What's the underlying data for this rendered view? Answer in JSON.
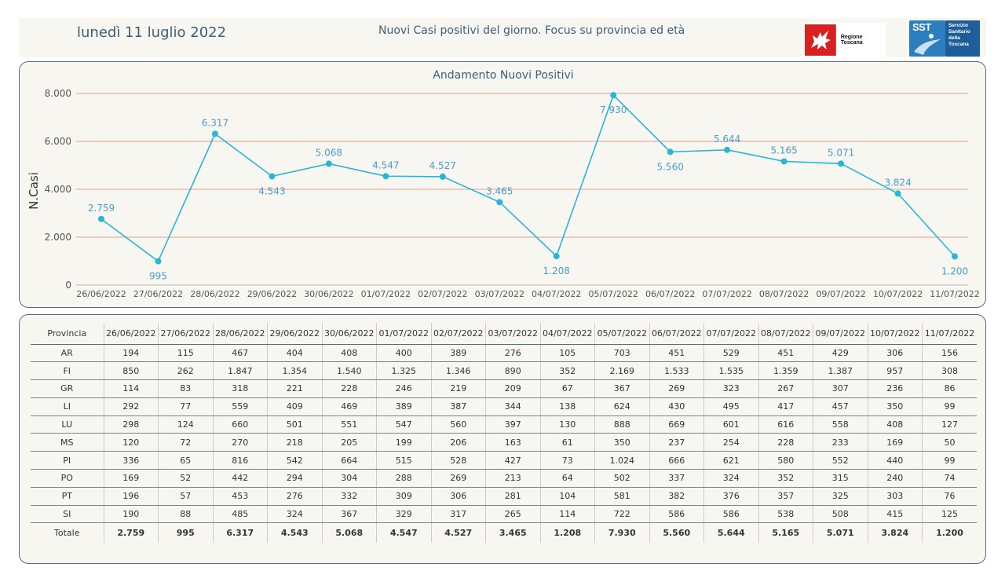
{
  "header": {
    "date": "lunedì 11 luglio 2022",
    "title": "Nuovi Casi positivi del giorno. Focus su provincia ed età",
    "logo_region": "Regione Toscana",
    "logo_sst": "SST",
    "logo_sst_side": [
      "Servizio",
      "Sanitario",
      "della",
      "Toscana"
    ]
  },
  "chart_data": {
    "type": "line",
    "title": "Andamento Nuovi Positivi",
    "ylabel": "N.Casi",
    "xlabel": "",
    "ylim": [
      0,
      8000
    ],
    "yticks": [
      "0",
      "2.000",
      "4.000",
      "6.000",
      "8.000"
    ],
    "ytick_values": [
      0,
      2000,
      4000,
      6000,
      8000
    ],
    "grid": true,
    "categories": [
      "26/06/2022",
      "27/06/2022",
      "28/06/2022",
      "29/06/2022",
      "30/06/2022",
      "01/07/2022",
      "02/07/2022",
      "03/07/2022",
      "04/07/2022",
      "05/07/2022",
      "06/07/2022",
      "07/07/2022",
      "08/07/2022",
      "09/07/2022",
      "10/07/2022",
      "11/07/2022"
    ],
    "values": [
      2759,
      995,
      6317,
      4543,
      5068,
      4547,
      4527,
      3465,
      1208,
      7930,
      5560,
      5644,
      5165,
      5071,
      3824,
      1200
    ],
    "labels": [
      "2.759",
      "995",
      "6.317",
      "4.543",
      "5.068",
      "4.547",
      "4.527",
      "3.465",
      "1.208",
      "7.930",
      "5.560",
      "5.644",
      "5.165",
      "5.071",
      "3.824",
      "1.200"
    ],
    "label_pos": [
      "above",
      "below",
      "above",
      "below",
      "above",
      "above",
      "above",
      "above",
      "below",
      "below",
      "below",
      "above",
      "above",
      "above",
      "above",
      "below"
    ],
    "colors": {
      "line": "#29b6d6",
      "label": "#4a9cc9",
      "grid": "#d9a38f",
      "axis_text": "#555555"
    }
  },
  "table": {
    "header_label": "Provincia",
    "total_label": "Totale",
    "rows": [
      {
        "prov": "AR",
        "vals": [
          "194",
          "115",
          "467",
          "404",
          "408",
          "400",
          "389",
          "276",
          "105",
          "703",
          "451",
          "529",
          "451",
          "429",
          "306",
          "156"
        ]
      },
      {
        "prov": "FI",
        "vals": [
          "850",
          "262",
          "1.847",
          "1.354",
          "1.540",
          "1.325",
          "1.346",
          "890",
          "352",
          "2.169",
          "1.533",
          "1.535",
          "1.359",
          "1.387",
          "957",
          "308"
        ]
      },
      {
        "prov": "GR",
        "vals": [
          "114",
          "83",
          "318",
          "221",
          "228",
          "246",
          "219",
          "209",
          "67",
          "367",
          "269",
          "323",
          "267",
          "307",
          "236",
          "86"
        ]
      },
      {
        "prov": "LI",
        "vals": [
          "292",
          "77",
          "559",
          "409",
          "469",
          "389",
          "387",
          "344",
          "138",
          "624",
          "430",
          "495",
          "417",
          "457",
          "350",
          "99"
        ]
      },
      {
        "prov": "LU",
        "vals": [
          "298",
          "124",
          "660",
          "501",
          "551",
          "547",
          "560",
          "397",
          "130",
          "888",
          "669",
          "601",
          "616",
          "558",
          "408",
          "127"
        ]
      },
      {
        "prov": "MS",
        "vals": [
          "120",
          "72",
          "270",
          "218",
          "205",
          "199",
          "206",
          "163",
          "61",
          "350",
          "237",
          "254",
          "228",
          "233",
          "169",
          "50"
        ]
      },
      {
        "prov": "PI",
        "vals": [
          "336",
          "65",
          "816",
          "542",
          "664",
          "515",
          "528",
          "427",
          "73",
          "1.024",
          "666",
          "621",
          "580",
          "552",
          "440",
          "99"
        ]
      },
      {
        "prov": "PO",
        "vals": [
          "169",
          "52",
          "442",
          "294",
          "304",
          "288",
          "269",
          "213",
          "64",
          "502",
          "337",
          "324",
          "352",
          "315",
          "240",
          "74"
        ]
      },
      {
        "prov": "PT",
        "vals": [
          "196",
          "57",
          "453",
          "276",
          "332",
          "309",
          "306",
          "281",
          "104",
          "581",
          "382",
          "376",
          "357",
          "325",
          "303",
          "76"
        ]
      },
      {
        "prov": "SI",
        "vals": [
          "190",
          "88",
          "485",
          "324",
          "367",
          "329",
          "317",
          "265",
          "114",
          "722",
          "586",
          "586",
          "538",
          "508",
          "415",
          "125"
        ]
      }
    ],
    "totals": [
      "2.759",
      "995",
      "6.317",
      "4.543",
      "5.068",
      "4.547",
      "4.527",
      "3.465",
      "1.208",
      "7.930",
      "5.560",
      "5.644",
      "5.165",
      "5.071",
      "3.824",
      "1.200"
    ]
  }
}
